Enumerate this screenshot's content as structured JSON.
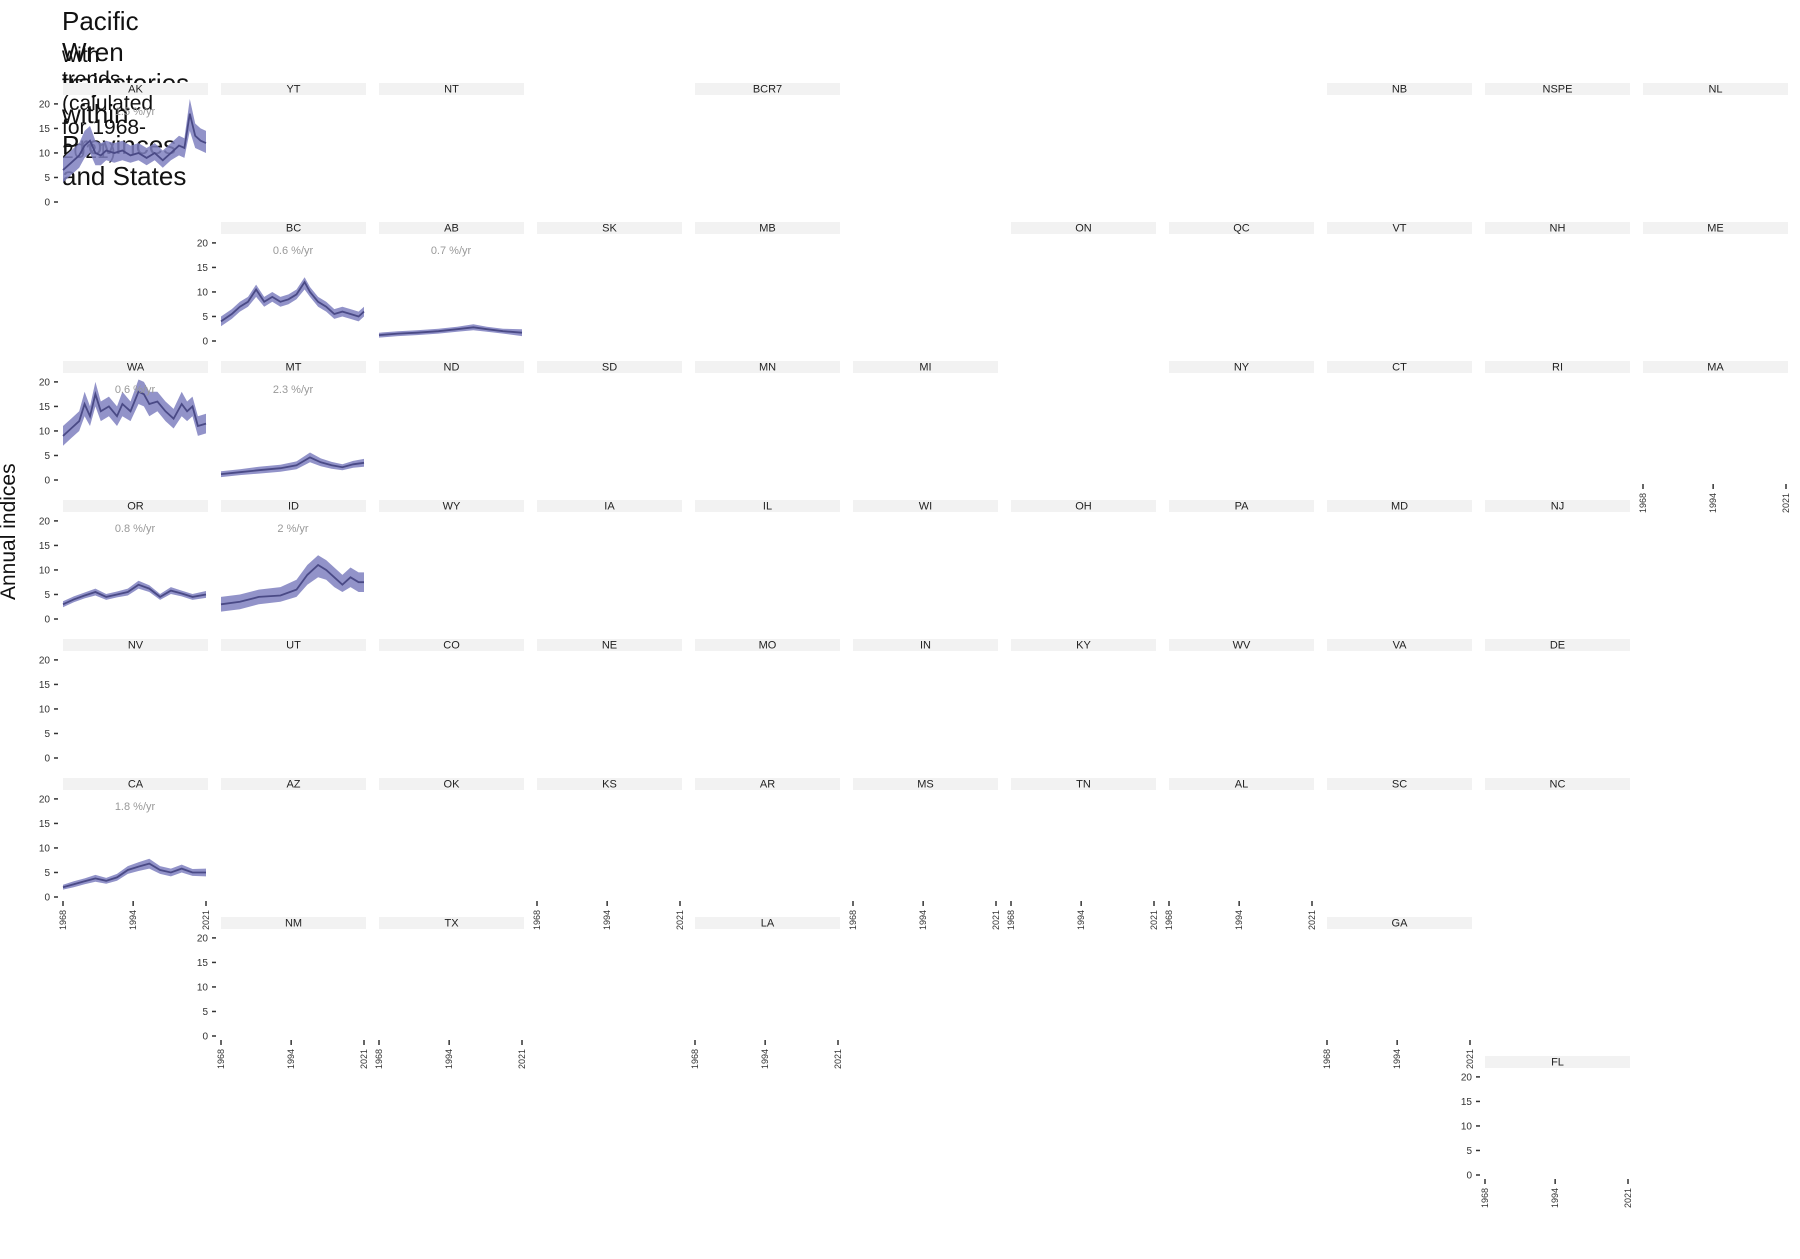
{
  "chart_data": {
    "type": "line",
    "title": "Pacific Wren trajectories within Provinces and States",
    "subtitle": "with trends (calulated for 1968-2021)",
    "xlabel": "",
    "ylabel": "Annual indices",
    "x_ticks": [
      "1968",
      "1994",
      "2021"
    ],
    "y_ticks": [
      "0",
      "5",
      "10",
      "15",
      "20"
    ],
    "xlim": [
      1968,
      2021
    ],
    "ylim": [
      0,
      21
    ],
    "grid": false,
    "colors": {
      "line": "#4a4a86",
      "band": "#7f80bf",
      "strip": "#f2f2f2",
      "trend_text": "#999999"
    },
    "panels": [
      {
        "name": "AK",
        "trend": "1.5 %/yr",
        "series": [
          {
            "year": 1968,
            "value": 6.5,
            "lower": 4.0,
            "upper": 9.0
          },
          {
            "year": 1971,
            "value": 8.0,
            "lower": 5.5,
            "upper": 10.5
          },
          {
            "year": 1974,
            "value": 9.5,
            "lower": 7.0,
            "upper": 12.0
          },
          {
            "year": 1976,
            "value": 11.5,
            "lower": 9.0,
            "upper": 14.5
          },
          {
            "year": 1978,
            "value": 12.5,
            "lower": 10.0,
            "upper": 15.5
          },
          {
            "year": 1980,
            "value": 10.0,
            "lower": 7.5,
            "upper": 12.5
          },
          {
            "year": 1982,
            "value": 9.5,
            "lower": 7.5,
            "upper": 12.0
          },
          {
            "year": 1984,
            "value": 10.5,
            "lower": 8.5,
            "upper": 12.5
          },
          {
            "year": 1987,
            "value": 10.0,
            "lower": 8.0,
            "upper": 12.0
          },
          {
            "year": 1990,
            "value": 10.5,
            "lower": 8.5,
            "upper": 12.5
          },
          {
            "year": 1993,
            "value": 9.5,
            "lower": 8.0,
            "upper": 11.5
          },
          {
            "year": 1996,
            "value": 10.0,
            "lower": 8.5,
            "upper": 12.0
          },
          {
            "year": 1999,
            "value": 9.0,
            "lower": 7.5,
            "upper": 11.0
          },
          {
            "year": 2002,
            "value": 10.0,
            "lower": 8.5,
            "upper": 12.0
          },
          {
            "year": 2005,
            "value": 8.5,
            "lower": 7.0,
            "upper": 10.5
          },
          {
            "year": 2008,
            "value": 10.0,
            "lower": 8.5,
            "upper": 12.0
          },
          {
            "year": 2011,
            "value": 11.5,
            "lower": 9.5,
            "upper": 13.5
          },
          {
            "year": 2013,
            "value": 11.0,
            "lower": 9.0,
            "upper": 13.0
          },
          {
            "year": 2015,
            "value": 18.0,
            "lower": 14.5,
            "upper": 21.0
          },
          {
            "year": 2017,
            "value": 13.5,
            "lower": 11.0,
            "upper": 16.0
          },
          {
            "year": 2019,
            "value": 12.5,
            "lower": 10.5,
            "upper": 15.0
          },
          {
            "year": 2021,
            "value": 12.0,
            "lower": 10.0,
            "upper": 14.5
          }
        ]
      },
      {
        "name": "YT"
      },
      {
        "name": "NT"
      },
      {
        "name": "BCR7"
      },
      {
        "name": "NB"
      },
      {
        "name": "NSPE"
      },
      {
        "name": "NL"
      },
      {
        "name": "BC",
        "trend": "0.6 %/yr",
        "series": [
          {
            "year": 1968,
            "value": 4.0,
            "lower": 3.0,
            "upper": 5.0
          },
          {
            "year": 1972,
            "value": 5.5,
            "lower": 4.5,
            "upper": 6.5
          },
          {
            "year": 1975,
            "value": 7.0,
            "lower": 6.0,
            "upper": 8.0
          },
          {
            "year": 1978,
            "value": 8.0,
            "lower": 7.0,
            "upper": 9.0
          },
          {
            "year": 1981,
            "value": 10.5,
            "lower": 9.0,
            "upper": 11.5
          },
          {
            "year": 1984,
            "value": 8.0,
            "lower": 7.0,
            "upper": 9.0
          },
          {
            "year": 1987,
            "value": 9.0,
            "lower": 8.0,
            "upper": 10.0
          },
          {
            "year": 1990,
            "value": 8.0,
            "lower": 7.0,
            "upper": 9.0
          },
          {
            "year": 1993,
            "value": 8.5,
            "lower": 7.5,
            "upper": 9.5
          },
          {
            "year": 1996,
            "value": 9.5,
            "lower": 8.5,
            "upper": 10.5
          },
          {
            "year": 1999,
            "value": 12.0,
            "lower": 10.5,
            "upper": 13.0
          },
          {
            "year": 2001,
            "value": 10.0,
            "lower": 9.0,
            "upper": 11.0
          },
          {
            "year": 2004,
            "value": 8.0,
            "lower": 7.0,
            "upper": 9.0
          },
          {
            "year": 2007,
            "value": 7.0,
            "lower": 6.0,
            "upper": 8.0
          },
          {
            "year": 2010,
            "value": 5.5,
            "lower": 4.5,
            "upper": 6.5
          },
          {
            "year": 2013,
            "value": 6.0,
            "lower": 5.0,
            "upper": 7.0
          },
          {
            "year": 2016,
            "value": 5.5,
            "lower": 4.5,
            "upper": 6.5
          },
          {
            "year": 2019,
            "value": 5.0,
            "lower": 4.0,
            "upper": 6.0
          },
          {
            "year": 2021,
            "value": 6.0,
            "lower": 5.0,
            "upper": 7.0
          }
        ]
      },
      {
        "name": "AB",
        "trend": "0.7 %/yr",
        "series": [
          {
            "year": 1968,
            "value": 1.2,
            "lower": 0.7,
            "upper": 1.7
          },
          {
            "year": 1975,
            "value": 1.5,
            "lower": 1.0,
            "upper": 2.0
          },
          {
            "year": 1982,
            "value": 1.7,
            "lower": 1.2,
            "upper": 2.2
          },
          {
            "year": 1990,
            "value": 2.0,
            "lower": 1.5,
            "upper": 2.5
          },
          {
            "year": 1997,
            "value": 2.4,
            "lower": 1.9,
            "upper": 2.9
          },
          {
            "year": 2003,
            "value": 2.8,
            "lower": 2.2,
            "upper": 3.4
          },
          {
            "year": 2008,
            "value": 2.4,
            "lower": 1.9,
            "upper": 2.9
          },
          {
            "year": 2014,
            "value": 2.0,
            "lower": 1.5,
            "upper": 2.5
          },
          {
            "year": 2021,
            "value": 1.7,
            "lower": 1.0,
            "upper": 2.4
          }
        ]
      },
      {
        "name": "SK"
      },
      {
        "name": "MB"
      },
      {
        "name": "ON"
      },
      {
        "name": "QC"
      },
      {
        "name": "VT"
      },
      {
        "name": "NH"
      },
      {
        "name": "ME"
      },
      {
        "name": "WA",
        "trend": "0.6 %/yr",
        "series": [
          {
            "year": 1968,
            "value": 9.0,
            "lower": 7.0,
            "upper": 11.0
          },
          {
            "year": 1971,
            "value": 10.5,
            "lower": 8.5,
            "upper": 12.5
          },
          {
            "year": 1974,
            "value": 12.0,
            "lower": 10.0,
            "upper": 14.0
          },
          {
            "year": 1976,
            "value": 15.5,
            "lower": 13.0,
            "upper": 18.0
          },
          {
            "year": 1978,
            "value": 13.0,
            "lower": 11.0,
            "upper": 15.0
          },
          {
            "year": 1980,
            "value": 17.5,
            "lower": 15.0,
            "upper": 20.0
          },
          {
            "year": 1982,
            "value": 14.0,
            "lower": 12.0,
            "upper": 16.0
          },
          {
            "year": 1985,
            "value": 15.0,
            "lower": 13.0,
            "upper": 17.0
          },
          {
            "year": 1988,
            "value": 13.0,
            "lower": 11.0,
            "upper": 15.0
          },
          {
            "year": 1990,
            "value": 15.5,
            "lower": 13.0,
            "upper": 18.0
          },
          {
            "year": 1993,
            "value": 14.0,
            "lower": 12.0,
            "upper": 16.0
          },
          {
            "year": 1996,
            "value": 18.0,
            "lower": 15.5,
            "upper": 20.5
          },
          {
            "year": 1998,
            "value": 17.5,
            "lower": 15.0,
            "upper": 20.0
          },
          {
            "year": 2000,
            "value": 15.5,
            "lower": 13.0,
            "upper": 18.0
          },
          {
            "year": 2003,
            "value": 16.0,
            "lower": 14.0,
            "upper": 18.0
          },
          {
            "year": 2006,
            "value": 14.0,
            "lower": 12.0,
            "upper": 16.0
          },
          {
            "year": 2009,
            "value": 12.5,
            "lower": 10.5,
            "upper": 14.5
          },
          {
            "year": 2012,
            "value": 15.5,
            "lower": 13.0,
            "upper": 18.0
          },
          {
            "year": 2014,
            "value": 14.0,
            "lower": 12.0,
            "upper": 16.0
          },
          {
            "year": 2016,
            "value": 15.0,
            "lower": 13.0,
            "upper": 17.0
          },
          {
            "year": 2018,
            "value": 11.0,
            "lower": 9.0,
            "upper": 13.0
          },
          {
            "year": 2021,
            "value": 11.5,
            "lower": 9.5,
            "upper": 13.5
          }
        ]
      },
      {
        "name": "MT",
        "trend": "2.3 %/yr",
        "series": [
          {
            "year": 1968,
            "value": 1.2,
            "lower": 0.6,
            "upper": 1.8
          },
          {
            "year": 1975,
            "value": 1.6,
            "lower": 1.0,
            "upper": 2.2
          },
          {
            "year": 1982,
            "value": 2.0,
            "lower": 1.3,
            "upper": 2.7
          },
          {
            "year": 1990,
            "value": 2.4,
            "lower": 1.7,
            "upper": 3.1
          },
          {
            "year": 1996,
            "value": 3.0,
            "lower": 2.2,
            "upper": 3.8
          },
          {
            "year": 2001,
            "value": 4.6,
            "lower": 3.6,
            "upper": 5.6
          },
          {
            "year": 2005,
            "value": 3.6,
            "lower": 2.8,
            "upper": 4.4
          },
          {
            "year": 2009,
            "value": 3.0,
            "lower": 2.3,
            "upper": 3.7
          },
          {
            "year": 2013,
            "value": 2.6,
            "lower": 2.0,
            "upper": 3.2
          },
          {
            "year": 2017,
            "value": 3.2,
            "lower": 2.5,
            "upper": 3.9
          },
          {
            "year": 2021,
            "value": 3.5,
            "lower": 2.7,
            "upper": 4.3
          }
        ]
      },
      {
        "name": "ND"
      },
      {
        "name": "SD"
      },
      {
        "name": "MN"
      },
      {
        "name": "MI"
      },
      {
        "name": "NY"
      },
      {
        "name": "CT"
      },
      {
        "name": "RI"
      },
      {
        "name": "MA"
      },
      {
        "name": "OR",
        "trend": "0.8 %/yr",
        "series": [
          {
            "year": 1968,
            "value": 3.0,
            "lower": 2.4,
            "upper": 3.6
          },
          {
            "year": 1972,
            "value": 4.0,
            "lower": 3.4,
            "upper": 4.6
          },
          {
            "year": 1976,
            "value": 4.8,
            "lower": 4.2,
            "upper": 5.4
          },
          {
            "year": 1980,
            "value": 5.5,
            "lower": 4.8,
            "upper": 6.2
          },
          {
            "year": 1984,
            "value": 4.5,
            "lower": 3.9,
            "upper": 5.1
          },
          {
            "year": 1988,
            "value": 5.0,
            "lower": 4.4,
            "upper": 5.6
          },
          {
            "year": 1992,
            "value": 5.5,
            "lower": 4.8,
            "upper": 6.2
          },
          {
            "year": 1996,
            "value": 7.0,
            "lower": 6.2,
            "upper": 7.8
          },
          {
            "year": 2000,
            "value": 6.2,
            "lower": 5.5,
            "upper": 6.9
          },
          {
            "year": 2004,
            "value": 4.5,
            "lower": 3.9,
            "upper": 5.1
          },
          {
            "year": 2008,
            "value": 5.8,
            "lower": 5.1,
            "upper": 6.5
          },
          {
            "year": 2012,
            "value": 5.2,
            "lower": 4.6,
            "upper": 5.8
          },
          {
            "year": 2016,
            "value": 4.5,
            "lower": 3.9,
            "upper": 5.1
          },
          {
            "year": 2021,
            "value": 5.0,
            "lower": 4.3,
            "upper": 5.7
          }
        ]
      },
      {
        "name": "ID",
        "trend": "2 %/yr",
        "series": [
          {
            "year": 1968,
            "value": 3.0,
            "lower": 1.5,
            "upper": 4.5
          },
          {
            "year": 1975,
            "value": 3.5,
            "lower": 2.0,
            "upper": 5.0
          },
          {
            "year": 1982,
            "value": 4.5,
            "lower": 3.0,
            "upper": 6.0
          },
          {
            "year": 1990,
            "value": 4.8,
            "lower": 3.5,
            "upper": 6.5
          },
          {
            "year": 1996,
            "value": 6.0,
            "lower": 4.5,
            "upper": 8.0
          },
          {
            "year": 2000,
            "value": 9.0,
            "lower": 7.0,
            "upper": 11.0
          },
          {
            "year": 2004,
            "value": 11.0,
            "lower": 8.5,
            "upper": 13.0
          },
          {
            "year": 2007,
            "value": 10.0,
            "lower": 8.0,
            "upper": 12.0
          },
          {
            "year": 2010,
            "value": 8.5,
            "lower": 6.5,
            "upper": 10.5
          },
          {
            "year": 2013,
            "value": 7.0,
            "lower": 5.5,
            "upper": 9.0
          },
          {
            "year": 2016,
            "value": 8.5,
            "lower": 6.5,
            "upper": 10.5
          },
          {
            "year": 2019,
            "value": 7.5,
            "lower": 5.5,
            "upper": 9.5
          },
          {
            "year": 2021,
            "value": 7.5,
            "lower": 5.5,
            "upper": 9.5
          }
        ]
      },
      {
        "name": "WY"
      },
      {
        "name": "IA"
      },
      {
        "name": "IL"
      },
      {
        "name": "WI"
      },
      {
        "name": "OH"
      },
      {
        "name": "PA"
      },
      {
        "name": "MD"
      },
      {
        "name": "NJ"
      },
      {
        "name": "NV"
      },
      {
        "name": "UT"
      },
      {
        "name": "CO"
      },
      {
        "name": "NE"
      },
      {
        "name": "MO"
      },
      {
        "name": "IN"
      },
      {
        "name": "KY"
      },
      {
        "name": "WV"
      },
      {
        "name": "VA"
      },
      {
        "name": "DE"
      },
      {
        "name": "CA",
        "trend": "1.8 %/yr",
        "series": [
          {
            "year": 1968,
            "value": 2.0,
            "lower": 1.5,
            "upper": 2.5
          },
          {
            "year": 1972,
            "value": 2.6,
            "lower": 2.0,
            "upper": 3.2
          },
          {
            "year": 1976,
            "value": 3.2,
            "lower": 2.6,
            "upper": 3.8
          },
          {
            "year": 1980,
            "value": 3.8,
            "lower": 3.1,
            "upper": 4.5
          },
          {
            "year": 1984,
            "value": 3.3,
            "lower": 2.7,
            "upper": 3.9
          },
          {
            "year": 1988,
            "value": 4.0,
            "lower": 3.3,
            "upper": 4.7
          },
          {
            "year": 1992,
            "value": 5.5,
            "lower": 4.7,
            "upper": 6.3
          },
          {
            "year": 1996,
            "value": 6.2,
            "lower": 5.3,
            "upper": 7.1
          },
          {
            "year": 2000,
            "value": 6.8,
            "lower": 5.8,
            "upper": 7.8
          },
          {
            "year": 2004,
            "value": 5.5,
            "lower": 4.7,
            "upper": 6.3
          },
          {
            "year": 2008,
            "value": 5.0,
            "lower": 4.2,
            "upper": 5.8
          },
          {
            "year": 2012,
            "value": 5.8,
            "lower": 5.0,
            "upper": 6.6
          },
          {
            "year": 2016,
            "value": 5.0,
            "lower": 4.3,
            "upper": 5.7
          },
          {
            "year": 2021,
            "value": 5.0,
            "lower": 4.2,
            "upper": 5.8
          }
        ]
      },
      {
        "name": "AZ"
      },
      {
        "name": "OK"
      },
      {
        "name": "KS"
      },
      {
        "name": "AR"
      },
      {
        "name": "MS"
      },
      {
        "name": "TN"
      },
      {
        "name": "AL"
      },
      {
        "name": "SC"
      },
      {
        "name": "NC"
      },
      {
        "name": "NM"
      },
      {
        "name": "TX"
      },
      {
        "name": "LA"
      },
      {
        "name": "GA"
      },
      {
        "name": "FL"
      }
    ]
  }
}
